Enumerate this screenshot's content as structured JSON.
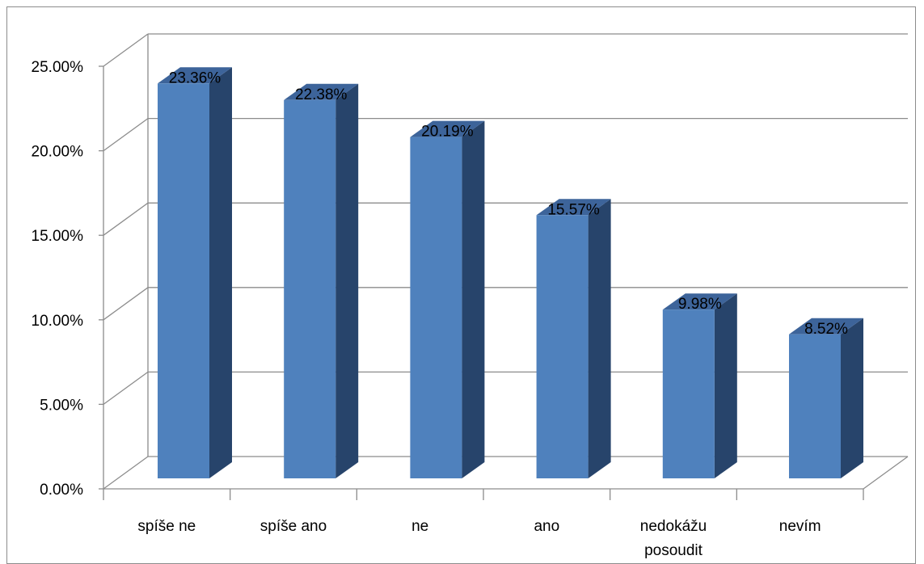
{
  "chart_data": {
    "type": "bar",
    "style": "3d-column",
    "title": "",
    "xlabel": "",
    "ylabel": "",
    "categories": [
      "spíše ne",
      "spíše ano",
      "ne",
      "ano",
      "nedokážu posoudit",
      "nevím"
    ],
    "category_lines": [
      [
        "spíše ne"
      ],
      [
        "spíše ano"
      ],
      [
        "ne"
      ],
      [
        "ano"
      ],
      [
        "nedokážu",
        "posoudit"
      ],
      [
        "nevím"
      ]
    ],
    "values": [
      23.36,
      22.38,
      20.19,
      15.57,
      9.98,
      8.52
    ],
    "data_labels": [
      "23.36%",
      "22.38%",
      "20.19%",
      "15.57%",
      "9.98%",
      "8.52%"
    ],
    "ylim": [
      0,
      25
    ],
    "yticks": [
      0,
      5,
      10,
      15,
      20,
      25
    ],
    "ytick_labels": [
      "0.00%",
      "5.00%",
      "10.00%",
      "15.00%",
      "20.00%",
      "25.00%"
    ],
    "grid": true,
    "legend": "none",
    "colors": {
      "bar_front": "#4f81bd",
      "bar_side": "#27446b",
      "bar_top": "#3d649a",
      "grid": "#8c8c8c",
      "axis": "#8c8c8c"
    }
  }
}
